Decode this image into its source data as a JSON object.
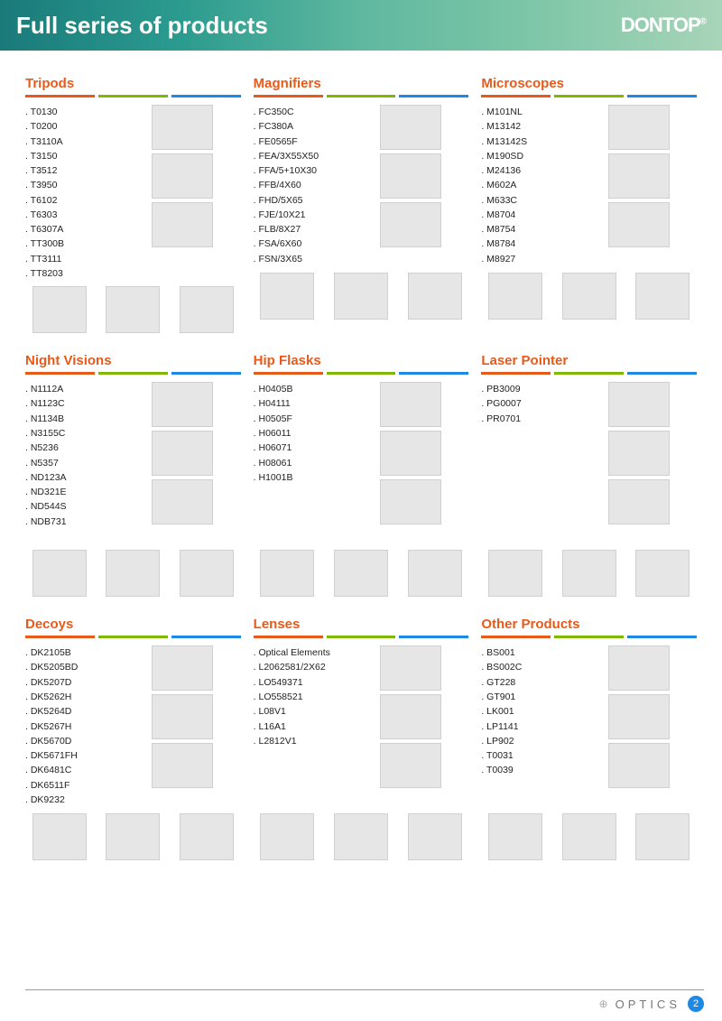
{
  "header": {
    "title": "Full series of products",
    "brand": "DONTOP",
    "reg": "®"
  },
  "colors": {
    "accent": "#e85a1a",
    "d1": "#e85a1a",
    "d2": "#7fb800",
    "d3": "#1e88e5"
  },
  "footer": {
    "label": "OPTICS",
    "page": "2"
  },
  "categories": [
    {
      "title": "Tripods",
      "items": [
        "T0130",
        "T0200",
        "T3110A",
        "T3150",
        "T3512",
        "T3950",
        "T6102",
        "T6303",
        "T6307A",
        "TT300B",
        "TT3111",
        "TT8203"
      ],
      "side_imgs": 3,
      "bottom_imgs": 3
    },
    {
      "title": "Magnifiers",
      "items": [
        "FC350C",
        "FC380A",
        "FE0565F",
        "FEA/3X55X50",
        "FFA/5+10X30",
        "FFB/4X60",
        "FHD/5X65",
        "FJE/10X21",
        "FLB/8X27",
        "FSA/6X60",
        "FSN/3X65"
      ],
      "side_imgs": 3,
      "bottom_imgs": 3
    },
    {
      "title": "Microscopes",
      "items": [
        "M101NL",
        "M13142",
        "M13142S",
        "M190SD",
        "M24136",
        "M602A",
        "M633C",
        "M8704",
        "M8754",
        "M8784",
        "M8927"
      ],
      "side_imgs": 3,
      "bottom_imgs": 3
    },
    {
      "title": "Night Visions",
      "items": [
        "N1112A",
        "N1123C",
        "N1134B",
        "N3155C",
        "N5236",
        "N5357",
        "ND123A",
        "ND321E",
        "ND544S",
        "NDB731"
      ],
      "side_imgs": 3,
      "bottom_imgs": 3
    },
    {
      "title": "Hip Flasks",
      "items": [
        "H0405B",
        "H04111",
        "H0505F",
        "H06011",
        "H06071",
        "H08061",
        "H1001B"
      ],
      "side_imgs": 3,
      "bottom_imgs": 3
    },
    {
      "title": "Laser Pointer",
      "items": [
        "PB3009",
        "PG0007",
        "PR0701"
      ],
      "side_imgs": 3,
      "bottom_imgs": 3
    },
    {
      "title": "Decoys",
      "items": [
        "DK2105B",
        "DK5205BD",
        "DK5207D",
        "DK5262H",
        "DK5264D",
        "DK5267H",
        "DK5670D",
        "DK5671FH",
        "DK6481C",
        "DK6511F",
        "DK9232"
      ],
      "side_imgs": 3,
      "bottom_imgs": 3
    },
    {
      "title": "Lenses",
      "items": [
        "Optical Elements",
        "L2062581/2X62",
        "LO549371",
        "LO558521",
        "L08V1",
        "L16A1",
        "L2812V1"
      ],
      "side_imgs": 3,
      "bottom_imgs": 3
    },
    {
      "title": "Other Products",
      "items": [
        "BS001",
        "BS002C",
        "GT228",
        "GT901",
        "LK001",
        "LP1141",
        "LP902",
        "T0031",
        "T0039"
      ],
      "side_imgs": 3,
      "bottom_imgs": 3
    }
  ]
}
